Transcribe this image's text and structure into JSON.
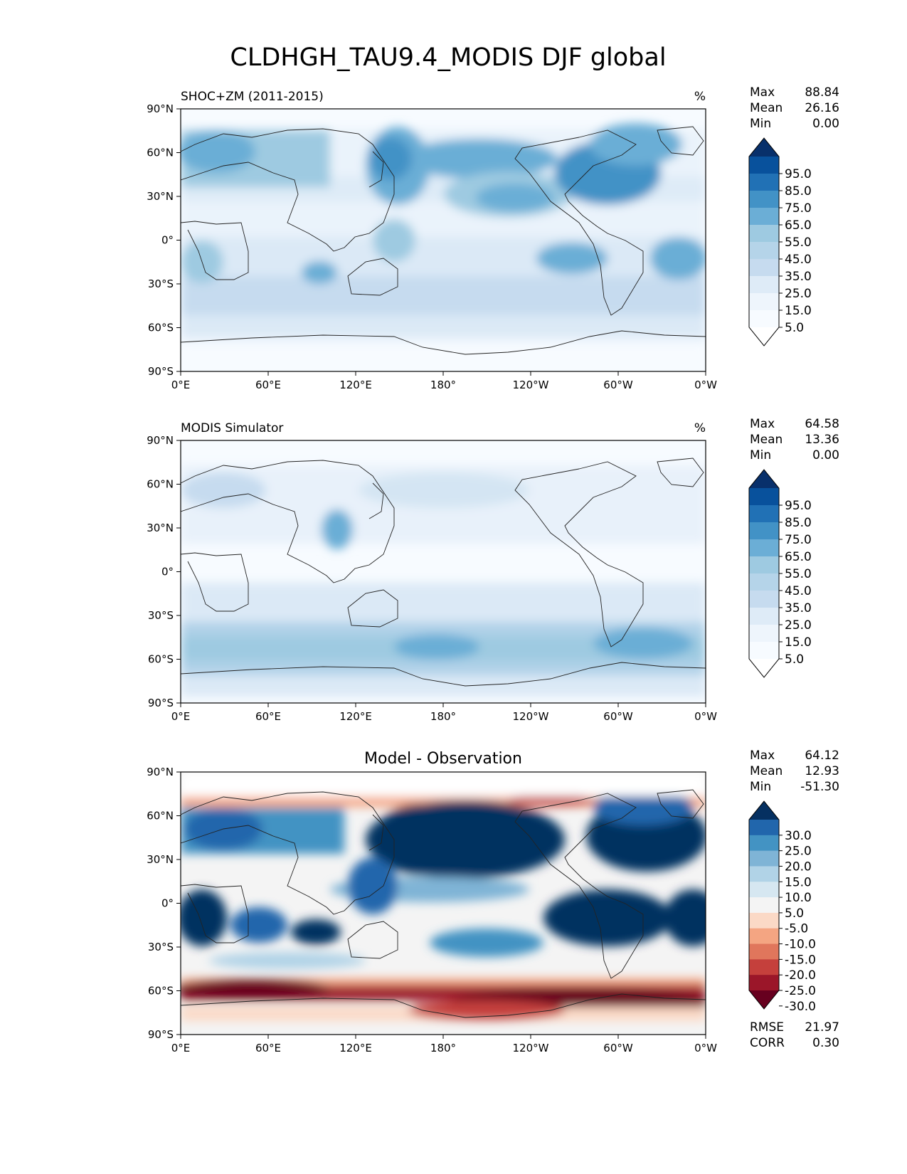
{
  "figure_title": "CLDHGH_TAU9.4_MODIS DJF global",
  "lon_ticks": [
    "0°E",
    "60°E",
    "120°E",
    "180°",
    "120°W",
    "60°W",
    "0°W"
  ],
  "lat_ticks": [
    "90°N",
    "60°N",
    "30°N",
    "0°",
    "30°S",
    "60°S",
    "90°S"
  ],
  "stat_labels": {
    "max": "Max",
    "mean": "Mean",
    "min": "Min",
    "rmse": "RMSE",
    "corr": "CORR"
  },
  "panels": [
    {
      "id": "test",
      "title_left": "SHOC+ZM (2011-2015)",
      "title_center": "",
      "units": "%",
      "stats": {
        "max": "88.84",
        "mean": "26.16",
        "min": "0.00"
      },
      "colormap": "Blues",
      "colorbar": {
        "labels": [
          "95.0",
          "85.0",
          "75.0",
          "65.0",
          "55.0",
          "45.0",
          "35.0",
          "25.0",
          "15.0",
          "5.0"
        ],
        "colors": [
          "#08306b",
          "#08519c",
          "#2171b5",
          "#4292c6",
          "#6baed6",
          "#9ecae1",
          "#b5d4e9",
          "#c6dbef",
          "#deebf7",
          "#eef5fc",
          "#f7fbff",
          "#ffffff"
        ]
      }
    },
    {
      "id": "reference",
      "title_left": "MODIS Simulator",
      "title_center": "",
      "units": "%",
      "stats": {
        "max": "64.58",
        "mean": "13.36",
        "min": "0.00"
      },
      "colormap": "Blues",
      "colorbar": {
        "labels": [
          "95.0",
          "85.0",
          "75.0",
          "65.0",
          "55.0",
          "45.0",
          "35.0",
          "25.0",
          "15.0",
          "5.0"
        ],
        "colors": [
          "#08306b",
          "#08519c",
          "#2171b5",
          "#4292c6",
          "#6baed6",
          "#9ecae1",
          "#b5d4e9",
          "#c6dbef",
          "#deebf7",
          "#eef5fc",
          "#f7fbff",
          "#ffffff"
        ]
      }
    },
    {
      "id": "diff",
      "title_left": "",
      "title_center": "Model - Observation",
      "units": "",
      "stats": {
        "max": "64.12",
        "mean": "12.93",
        "min": "-51.30",
        "rmse": "21.97",
        "corr": "0.30"
      },
      "colormap": "RdBu",
      "colorbar": {
        "labels": [
          "30.0",
          "25.0",
          "20.0",
          "15.0",
          "10.0",
          "5.0",
          "-5.0",
          "-10.0",
          "-15.0",
          "-20.0",
          "-25.0",
          "-30.0"
        ],
        "colors": [
          "#053061",
          "#2166ac",
          "#4393c3",
          "#7fb4d6",
          "#b1d3e7",
          "#d6e7f1",
          "#f4f4f4",
          "#fbd9c6",
          "#f4a582",
          "#e0765c",
          "#c5403c",
          "#9b1629",
          "#67001f"
        ]
      }
    }
  ]
}
